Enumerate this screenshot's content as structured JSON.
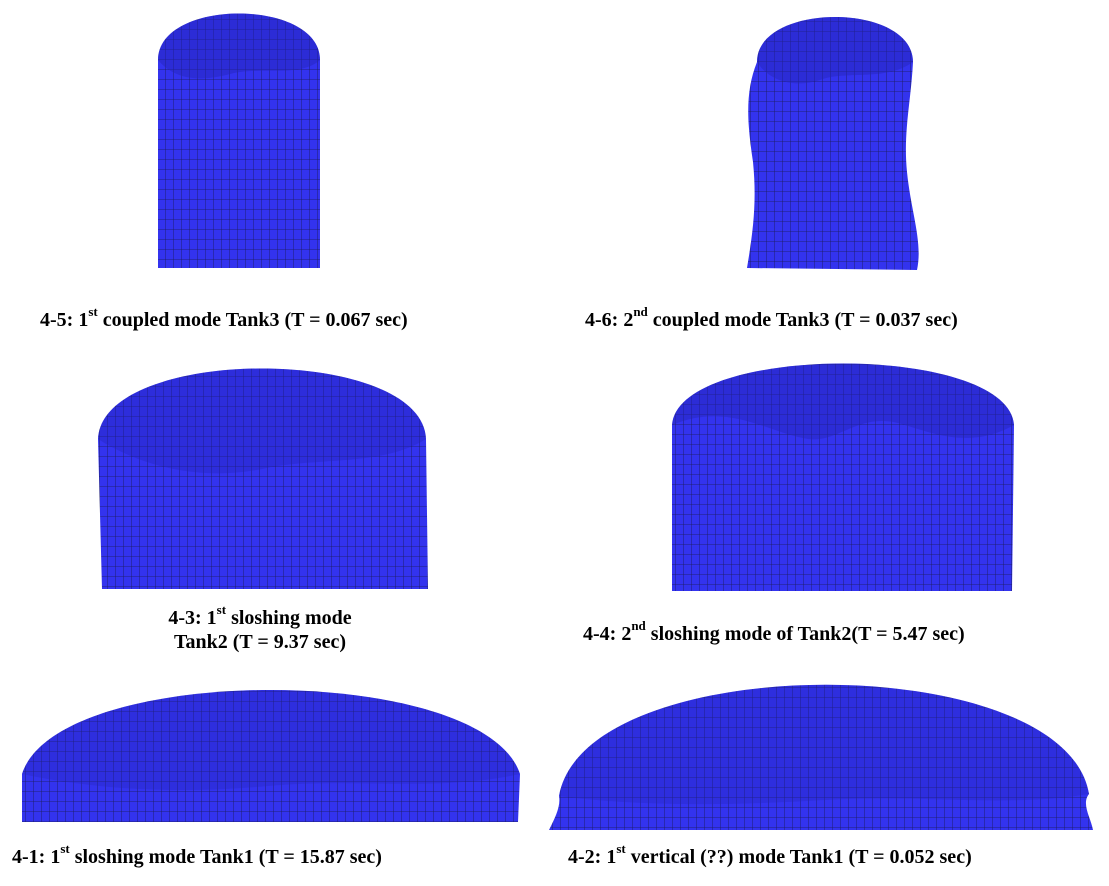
{
  "colors": {
    "mesh_fill": "#3333ee",
    "mesh_line": "#1a1a55",
    "shade": "#2323b8"
  },
  "figures": [
    {
      "id": "4-5",
      "prefix": "4-5: 1",
      "sup": "st",
      "suffix": " coupled mode Tank3 (T = 0.067 sec)"
    },
    {
      "id": "4-6",
      "prefix": "4-6: 2",
      "sup": "nd",
      "suffix": "  coupled mode  Tank3 (T = 0.037 sec)"
    },
    {
      "id": "4-3",
      "prefix": "4-3: 1",
      "sup": "st",
      "suffix": " sloshing mode",
      "line2": "Tank2 (T = 9.37 sec)"
    },
    {
      "id": "4-4",
      "prefix": "4-4: 2",
      "sup": "nd",
      "suffix": " sloshing mode of Tank2(T = 5.47 sec)"
    },
    {
      "id": "4-1",
      "prefix": "4-1: 1",
      "sup": "st",
      "suffix": "  sloshing mode Tank1 (T = 15.87 sec)"
    },
    {
      "id": "4-2",
      "prefix": "4-2: 1",
      "sup": "st",
      "suffix": "  vertical (??) mode Tank1 (T = 0.052 sec)"
    }
  ]
}
